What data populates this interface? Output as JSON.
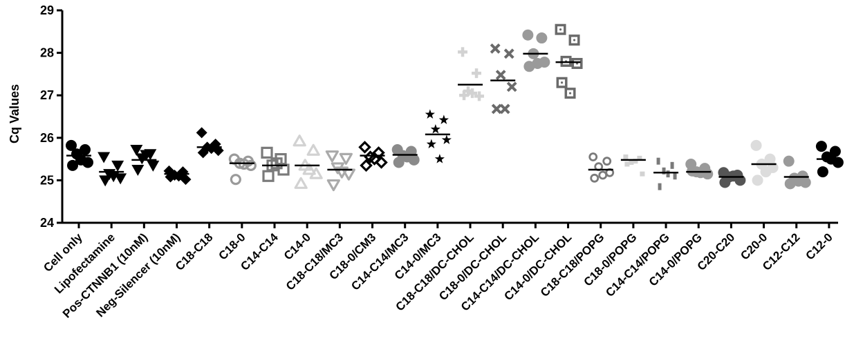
{
  "chart_data": {
    "type": "scatter",
    "title": "",
    "ylabel": "Cq Values",
    "xlabel": "",
    "ylim": [
      24,
      29
    ],
    "yticks": [
      24,
      25,
      26,
      27,
      28,
      29
    ],
    "grid": false,
    "legend": "none",
    "categories": [
      "Cell only",
      "Lipofectamine",
      "Pos-CTNNB1 (10nM)",
      "Neg-Silencer (10nM)",
      "C18-C18",
      "C18-0",
      "C14-C14",
      "C14-0",
      "C18-C18/MC3",
      "C18-0/CM3",
      "C14-C14/MC3",
      "C14-0/MC3",
      "C18-C18/DC-CHOL",
      "C18-0/DC-CHOL",
      "C14-C14/DC-CHOL",
      "C14-0/DC-CHOL",
      "C18-C18/POPG",
      "C18-0/POPG",
      "C14-C14/POPG",
      "C14-0/POPG",
      "C20-C20",
      "C20-0",
      "C12-C12",
      "C12-0"
    ],
    "series": [
      {
        "marker": "circle",
        "color": "#000000",
        "mean": 25.58,
        "values": [
          25.82,
          25.72,
          25.62,
          25.42,
          25.35,
          25.48
        ]
      },
      {
        "marker": "triangle-down",
        "color": "#000000",
        "mean": 25.2,
        "values": [
          25.55,
          25.35,
          25.15,
          25.05,
          25.0,
          25.1
        ]
      },
      {
        "marker": "triangle-down",
        "color": "#000000",
        "mean": 25.48,
        "values": [
          25.72,
          25.62,
          25.52,
          25.35,
          25.25,
          25.6
        ]
      },
      {
        "marker": "diamond",
        "color": "#000000",
        "mean": 25.15,
        "values": [
          25.22,
          25.2,
          25.12,
          25.02,
          25.08,
          25.1
        ]
      },
      {
        "marker": "diamond",
        "color": "#000000",
        "mean": 25.78,
        "values": [
          26.12,
          25.85,
          25.78,
          25.7,
          25.65,
          25.75
        ]
      },
      {
        "marker": "circle-open",
        "color": "#9a9a9a",
        "mean": 25.4,
        "values": [
          25.5,
          25.45,
          25.4,
          25.35,
          25.02,
          25.38
        ]
      },
      {
        "marker": "square-open",
        "color": "#7a7a7a",
        "mean": 25.35,
        "values": [
          25.65,
          25.5,
          25.35,
          25.25,
          25.1,
          25.4
        ]
      },
      {
        "marker": "triangle-up-open",
        "color": "#d2d2d2",
        "mean": 25.35,
        "values": [
          25.92,
          25.7,
          25.35,
          25.15,
          24.92,
          25.25
        ]
      },
      {
        "marker": "triangle-down-open",
        "color": "#aaaaaa",
        "mean": 25.25,
        "values": [
          25.58,
          25.52,
          25.3,
          25.15,
          24.9,
          25.2
        ]
      },
      {
        "marker": "diamond-open",
        "color": "#000000",
        "mean": 25.58,
        "values": [
          25.78,
          25.65,
          25.55,
          25.42,
          25.35,
          25.5
        ]
      },
      {
        "marker": "circle",
        "color": "#8a8a8a",
        "mean": 25.6,
        "values": [
          25.72,
          25.68,
          25.58,
          25.48,
          25.42,
          25.55
        ]
      },
      {
        "marker": "star",
        "color": "#000000",
        "mean": 26.08,
        "values": [
          26.55,
          26.42,
          26.2,
          25.95,
          25.85,
          25.5
        ]
      },
      {
        "marker": "plus",
        "color": "#d2d2d2",
        "mean": 27.25,
        "values": [
          28.02,
          27.52,
          27.1,
          26.98,
          27.0,
          27.05
        ]
      },
      {
        "marker": "cross",
        "color": "#6a6a6a",
        "mean": 27.35,
        "values": [
          28.1,
          27.98,
          27.48,
          27.2,
          26.68,
          26.68
        ]
      },
      {
        "marker": "circle",
        "color": "#9a9a9a",
        "mean": 27.98,
        "values": [
          28.42,
          28.35,
          27.98,
          27.78,
          27.68,
          27.75
        ]
      },
      {
        "marker": "square-dot",
        "color": "#6a6a6a",
        "mean": 27.78,
        "values": [
          28.55,
          28.3,
          27.8,
          27.75,
          27.3,
          27.05
        ]
      },
      {
        "marker": "circle-open-small",
        "color": "#7a7a7a",
        "mean": 25.25,
        "values": [
          25.55,
          25.45,
          25.32,
          25.18,
          25.05,
          25.12
        ]
      },
      {
        "marker": "square-small",
        "color": "#d2d2d2",
        "mean": 25.48,
        "values": [
          25.55,
          25.52,
          25.42,
          25.15,
          25.38,
          25.45
        ]
      },
      {
        "marker": "dash",
        "color": "#7a7a7a",
        "mean": 25.18,
        "values": [
          25.45,
          25.35,
          25.22,
          25.1,
          24.85,
          25.15
        ]
      },
      {
        "marker": "circle",
        "color": "#9a9a9a",
        "mean": 25.2,
        "values": [
          25.38,
          25.28,
          25.2,
          25.15,
          25.22,
          25.18
        ]
      },
      {
        "marker": "circle",
        "color": "#555555",
        "mean": 25.08,
        "values": [
          25.18,
          25.12,
          25.08,
          25.0,
          24.95,
          25.1
        ]
      },
      {
        "marker": "circle",
        "color": "#dcdcdc",
        "mean": 25.38,
        "values": [
          25.82,
          25.5,
          25.38,
          25.3,
          25.0,
          25.2
        ]
      },
      {
        "marker": "circle",
        "color": "#9a9a9a",
        "mean": 25.08,
        "values": [
          25.45,
          25.1,
          25.05,
          24.95,
          24.92,
          24.98
        ]
      },
      {
        "marker": "circle",
        "color": "#000000",
        "mean": 25.5,
        "values": [
          25.8,
          25.68,
          25.55,
          25.42,
          25.2,
          25.5
        ]
      }
    ]
  }
}
